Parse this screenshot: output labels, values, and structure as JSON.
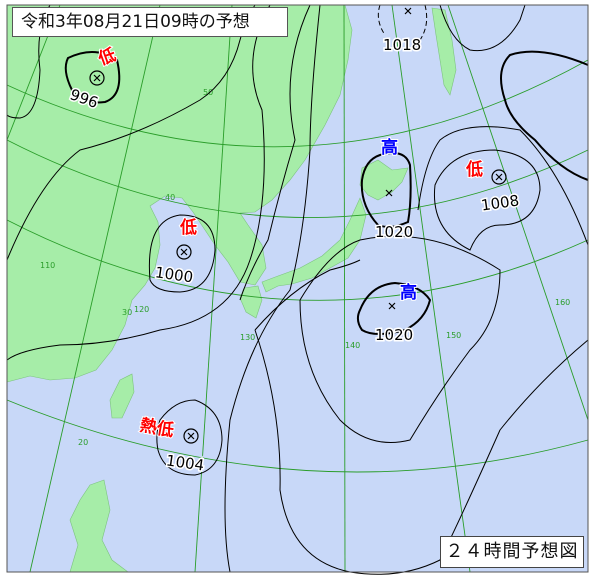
{
  "title": "令和3年08月21日09時の予想",
  "chart_label": "２４時間予想図",
  "colors": {
    "land": "#a6eda8",
    "sea": "#c8d8f8",
    "grid": "#2a9d2a",
    "isobar": "#000000",
    "low": "#ff0000",
    "high": "#0000ff"
  },
  "systems": [
    {
      "type": "low",
      "label": "低",
      "pressure": "996"
    },
    {
      "type": "low",
      "label": "低",
      "pressure": "1000"
    },
    {
      "type": "high",
      "label": "高",
      "pressure": "1020"
    },
    {
      "type": "low",
      "label": "低",
      "pressure": "1008"
    },
    {
      "type": "high",
      "label": "高",
      "pressure": "1020"
    },
    {
      "type": "tropical-low",
      "label": "熱低",
      "pressure": "1004"
    }
  ],
  "isobar_labels": [
    "1018"
  ],
  "grid_labels": {
    "latitudes": [
      "50",
      "40",
      "30",
      "20"
    ],
    "longitudes": [
      "110",
      "120",
      "130",
      "140",
      "150",
      "160"
    ]
  }
}
